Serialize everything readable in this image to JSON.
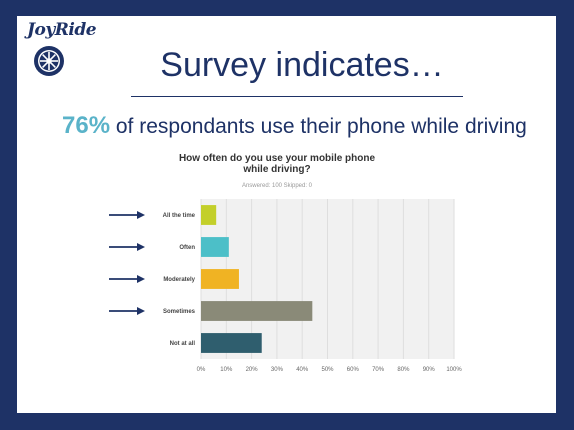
{
  "logo": {
    "text": "JoyRide",
    "icon": "wheel-icon"
  },
  "slide": {
    "title": "Survey indicates…",
    "headline_pct": "76%",
    "headline_rest": " of respondants use their phone while driving"
  },
  "chart_data": {
    "type": "bar",
    "orientation": "horizontal",
    "title": "How often do you use your mobile phone while driving?",
    "meta": "Answered: 100   Skipped: 0",
    "categories": [
      "All the time",
      "Often",
      "Moderately",
      "Sometimes",
      "Not at all"
    ],
    "values": [
      6,
      11,
      15,
      44,
      24
    ],
    "colors": [
      "#c3cf2a",
      "#4cbfc8",
      "#f0b323",
      "#8a8a78",
      "#2f5e6e"
    ],
    "arrows": [
      true,
      true,
      true,
      true,
      false
    ],
    "xlim": [
      0,
      100
    ],
    "xticks": [
      "0%",
      "10%",
      "20%",
      "30%",
      "40%",
      "50%",
      "60%",
      "70%",
      "80%",
      "90%",
      "100%"
    ],
    "grid": true,
    "ylabel": "",
    "xlabel": ""
  },
  "colors": {
    "brand": "#1e3266",
    "accent": "#5ab3c9",
    "background": "#1e3266"
  }
}
